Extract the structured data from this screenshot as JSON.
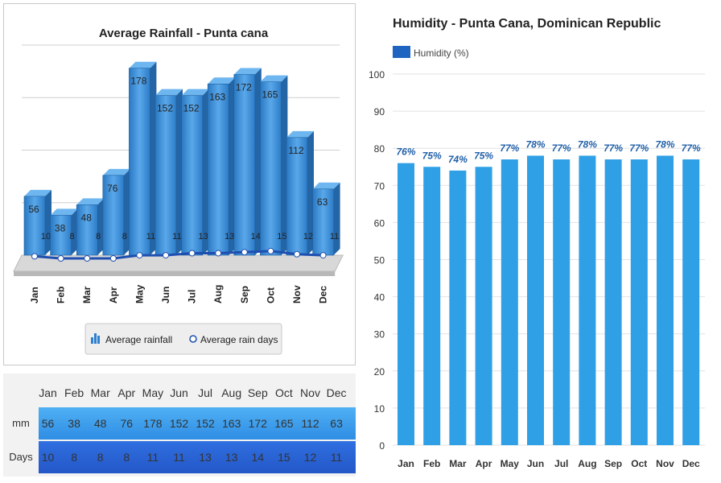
{
  "chart_data": [
    {
      "type": "bar",
      "title": "Average Rainfall - Punta cana",
      "categories": [
        "Jan",
        "Feb",
        "Mar",
        "Apr",
        "May",
        "Jun",
        "Jul",
        "Aug",
        "Sep",
        "Oct",
        "Nov",
        "Dec"
      ],
      "series": [
        {
          "name": "Average rainfall",
          "values": [
            56,
            38,
            48,
            76,
            178,
            152,
            152,
            163,
            172,
            165,
            112,
            63
          ]
        },
        {
          "name": "Average rain days",
          "values": [
            10,
            8,
            8,
            8,
            11,
            11,
            13,
            13,
            14,
            15,
            12,
            11
          ]
        }
      ],
      "ylim": [
        0,
        200
      ],
      "grid": true,
      "legend": "bottom",
      "colors": {
        "bar": "#3d8fd6",
        "line": "#1e4fb0"
      }
    },
    {
      "type": "bar",
      "title": "Humidity - Punta Cana, Dominican Republic",
      "categories": [
        "Jan",
        "Feb",
        "Mar",
        "Apr",
        "May",
        "Jun",
        "Jul",
        "Aug",
        "Sep",
        "Oct",
        "Nov",
        "Dec"
      ],
      "series": [
        {
          "name": "Humidity (%)",
          "values": [
            76,
            75,
            74,
            75,
            77,
            78,
            77,
            78,
            77,
            77,
            78,
            77
          ],
          "labels": [
            "76%",
            "75%",
            "74%",
            "75%",
            "77%",
            "78%",
            "77%",
            "78%",
            "77%",
            "77%",
            "78%",
            "77%"
          ]
        }
      ],
      "yticks": [
        0,
        10,
        20,
        30,
        40,
        50,
        60,
        70,
        80,
        90,
        100
      ],
      "ylim": [
        0,
        100
      ],
      "grid": true,
      "legend": "top-left",
      "colors": {
        "bar": "#2fa0e6",
        "label": "#1f5fa8"
      }
    }
  ],
  "rain_table": {
    "months": [
      "Jan",
      "Feb",
      "Mar",
      "Apr",
      "May",
      "Jun",
      "Jul",
      "Aug",
      "Sep",
      "Oct",
      "Nov",
      "Dec"
    ],
    "mm_label": "mm",
    "mm": [
      56,
      38,
      48,
      76,
      178,
      152,
      152,
      163,
      172,
      165,
      112,
      63
    ],
    "days_label": "Days",
    "days": [
      10,
      8,
      8,
      8,
      11,
      11,
      13,
      13,
      14,
      15,
      12,
      11
    ]
  }
}
